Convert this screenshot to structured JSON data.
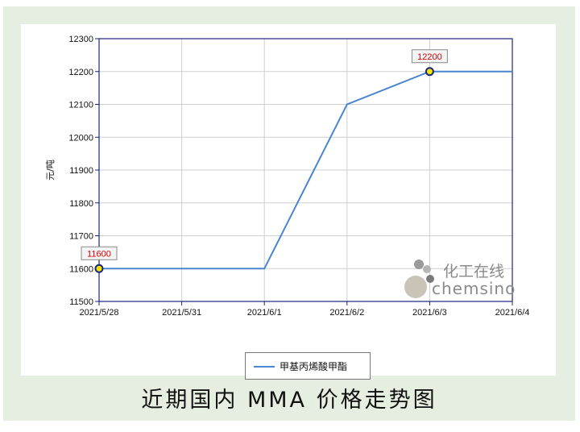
{
  "caption": "近期国内 MMA 价格走势图",
  "watermark": {
    "zh": "化工在线",
    "en": "chemsino"
  },
  "colors": {
    "line": "#4a86d0",
    "marker_fill": "#f2e300",
    "marker_stroke": "#1a237e",
    "callout_text": "#d80000",
    "background": "#e6eee1"
  },
  "chart_data": {
    "type": "line",
    "categories": [
      "2021/5/28",
      "2021/5/31",
      "2021/6/1",
      "2021/6/2",
      "2021/6/3",
      "2021/6/4"
    ],
    "series": [
      {
        "name": "甲基丙烯酸甲酯",
        "values": [
          11600,
          11600,
          11600,
          12100,
          12200,
          12200
        ]
      }
    ],
    "ylabel": "元/吨",
    "xlabel": "",
    "ylim": [
      11500,
      12300
    ],
    "yticks": [
      11500,
      11600,
      11700,
      11800,
      11900,
      12000,
      12100,
      12200,
      12300
    ],
    "annotations": [
      {
        "category": "2021/5/28",
        "value": 11600,
        "label": "11600"
      },
      {
        "category": "2021/6/3",
        "value": 12200,
        "label": "12200"
      }
    ],
    "grid": true,
    "legend": "bottom-center"
  }
}
